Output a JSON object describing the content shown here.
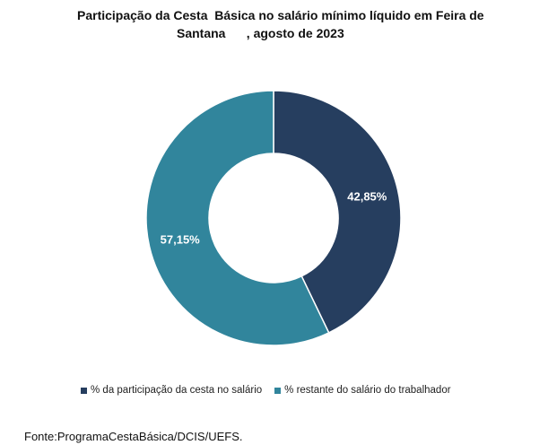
{
  "chart_data": {
    "type": "pie",
    "donut": true,
    "title_lines": [
      "Participação da Cesta  Básica no salário mínimo líquido em Feira de",
      "Santana      , agosto de 2023"
    ],
    "categories": [
      "% da participação da cesta no salário",
      "% restante do salário do trabalhador"
    ],
    "values": [
      42.85,
      57.15
    ],
    "value_labels": [
      "42,85%",
      "57,15%"
    ],
    "colors": [
      "#263E5F",
      "#31859C"
    ],
    "legend_position": "bottom"
  },
  "source": "Fonte:ProgramaCestaBásica/DCIS/UEFS."
}
